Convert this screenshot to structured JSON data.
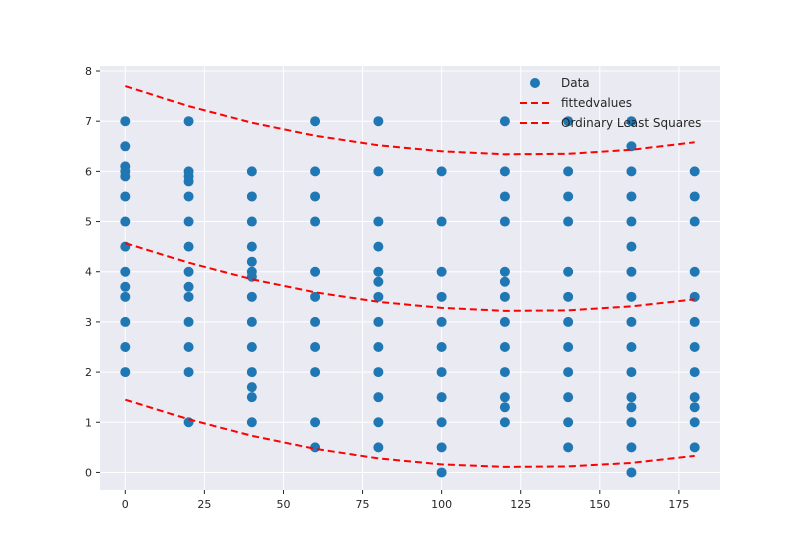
{
  "chart_data": {
    "type": "scatter",
    "xlim": [
      -8,
      188
    ],
    "ylim": [
      -0.35,
      8.1
    ],
    "x_ticks": [
      0,
      25,
      50,
      75,
      100,
      125,
      150,
      175
    ],
    "x_tick_labels": [
      "0",
      "25",
      "50",
      "75",
      "100",
      "125",
      "150",
      "175"
    ],
    "y_ticks": [
      0,
      1,
      2,
      3,
      4,
      5,
      6,
      7,
      8
    ],
    "y_tick_labels": [
      "0",
      "1",
      "2",
      "3",
      "4",
      "5",
      "6",
      "7",
      "8"
    ],
    "grid": true,
    "legend_position": "top-right",
    "title": "",
    "xlabel": "",
    "ylabel": "",
    "colors": {
      "background": "#eaeaf2",
      "grid": "#ffffff",
      "data": "#1f77b4",
      "line": "#ff0000",
      "text": "#262626"
    },
    "series": [
      {
        "name": "Data",
        "kind": "scatter",
        "points": [
          [
            0,
            2
          ],
          [
            0,
            2.5
          ],
          [
            0,
            3
          ],
          [
            0,
            3.5
          ],
          [
            0,
            3.7
          ],
          [
            0,
            4
          ],
          [
            0,
            4.5
          ],
          [
            0,
            5
          ],
          [
            0,
            5.5
          ],
          [
            0,
            5.9
          ],
          [
            0,
            6
          ],
          [
            0,
            6.1
          ],
          [
            0,
            6.5
          ],
          [
            0,
            7
          ],
          [
            20,
            1
          ],
          [
            20,
            2
          ],
          [
            20,
            2.5
          ],
          [
            20,
            3
          ],
          [
            20,
            3.5
          ],
          [
            20,
            3.7
          ],
          [
            20,
            4
          ],
          [
            20,
            4.5
          ],
          [
            20,
            5
          ],
          [
            20,
            5.5
          ],
          [
            20,
            5.8
          ],
          [
            20,
            5.9
          ],
          [
            20,
            6
          ],
          [
            20,
            7
          ],
          [
            40,
            1
          ],
          [
            40,
            1.5
          ],
          [
            40,
            1.7
          ],
          [
            40,
            2
          ],
          [
            40,
            2.5
          ],
          [
            40,
            3
          ],
          [
            40,
            3.5
          ],
          [
            40,
            3.9
          ],
          [
            40,
            4
          ],
          [
            40,
            4.2
          ],
          [
            40,
            4.5
          ],
          [
            40,
            5
          ],
          [
            40,
            5.5
          ],
          [
            40,
            6
          ],
          [
            60,
            0.5
          ],
          [
            60,
            1
          ],
          [
            60,
            2
          ],
          [
            60,
            2.5
          ],
          [
            60,
            3
          ],
          [
            60,
            3.5
          ],
          [
            60,
            4
          ],
          [
            60,
            5
          ],
          [
            60,
            5.5
          ],
          [
            60,
            6
          ],
          [
            60,
            7
          ],
          [
            80,
            0.5
          ],
          [
            80,
            1
          ],
          [
            80,
            1.5
          ],
          [
            80,
            2
          ],
          [
            80,
            2.5
          ],
          [
            80,
            3
          ],
          [
            80,
            3.5
          ],
          [
            80,
            3.8
          ],
          [
            80,
            4
          ],
          [
            80,
            4.5
          ],
          [
            80,
            5
          ],
          [
            80,
            6
          ],
          [
            80,
            7
          ],
          [
            100,
            0
          ],
          [
            100,
            0.5
          ],
          [
            100,
            1
          ],
          [
            100,
            1.5
          ],
          [
            100,
            2
          ],
          [
            100,
            2.5
          ],
          [
            100,
            3
          ],
          [
            100,
            3.5
          ],
          [
            100,
            4
          ],
          [
            100,
            5
          ],
          [
            100,
            6
          ],
          [
            120,
            1
          ],
          [
            120,
            1.3
          ],
          [
            120,
            1.5
          ],
          [
            120,
            2
          ],
          [
            120,
            2.5
          ],
          [
            120,
            3
          ],
          [
            120,
            3.5
          ],
          [
            120,
            3.8
          ],
          [
            120,
            4
          ],
          [
            120,
            5
          ],
          [
            120,
            5.5
          ],
          [
            120,
            6
          ],
          [
            120,
            7
          ],
          [
            140,
            0.5
          ],
          [
            140,
            1
          ],
          [
            140,
            1.5
          ],
          [
            140,
            2
          ],
          [
            140,
            2.5
          ],
          [
            140,
            3
          ],
          [
            140,
            3.5
          ],
          [
            140,
            4
          ],
          [
            140,
            5
          ],
          [
            140,
            5.5
          ],
          [
            140,
            6
          ],
          [
            140,
            7
          ],
          [
            160,
            0
          ],
          [
            160,
            0.5
          ],
          [
            160,
            1
          ],
          [
            160,
            1.3
          ],
          [
            160,
            1.5
          ],
          [
            160,
            2
          ],
          [
            160,
            2.5
          ],
          [
            160,
            3
          ],
          [
            160,
            3.5
          ],
          [
            160,
            4
          ],
          [
            160,
            4.5
          ],
          [
            160,
            5
          ],
          [
            160,
            5.5
          ],
          [
            160,
            6
          ],
          [
            160,
            6.5
          ],
          [
            160,
            7
          ],
          [
            180,
            0.5
          ],
          [
            180,
            1
          ],
          [
            180,
            1.3
          ],
          [
            180,
            1.5
          ],
          [
            180,
            2
          ],
          [
            180,
            2.5
          ],
          [
            180,
            3
          ],
          [
            180,
            3.5
          ],
          [
            180,
            4
          ],
          [
            180,
            5
          ],
          [
            180,
            5.5
          ],
          [
            180,
            6
          ]
        ]
      },
      {
        "name": "fittedvalues",
        "kind": "line",
        "x": [
          0,
          20,
          40,
          60,
          80,
          100,
          120,
          140,
          160,
          180
        ],
        "y": [
          4.57,
          4.18,
          3.85,
          3.59,
          3.4,
          3.28,
          3.22,
          3.23,
          3.31,
          3.45
        ]
      },
      {
        "name": "Ordinary Least Squares",
        "kind": "band",
        "x": [
          0,
          20,
          40,
          60,
          80,
          100,
          120,
          140,
          160,
          180
        ],
        "upper": [
          7.7,
          7.3,
          6.97,
          6.71,
          6.52,
          6.4,
          6.34,
          6.35,
          6.43,
          6.58
        ],
        "lower": [
          1.45,
          1.06,
          0.73,
          0.47,
          0.28,
          0.16,
          0.11,
          0.12,
          0.19,
          0.33
        ]
      }
    ]
  }
}
